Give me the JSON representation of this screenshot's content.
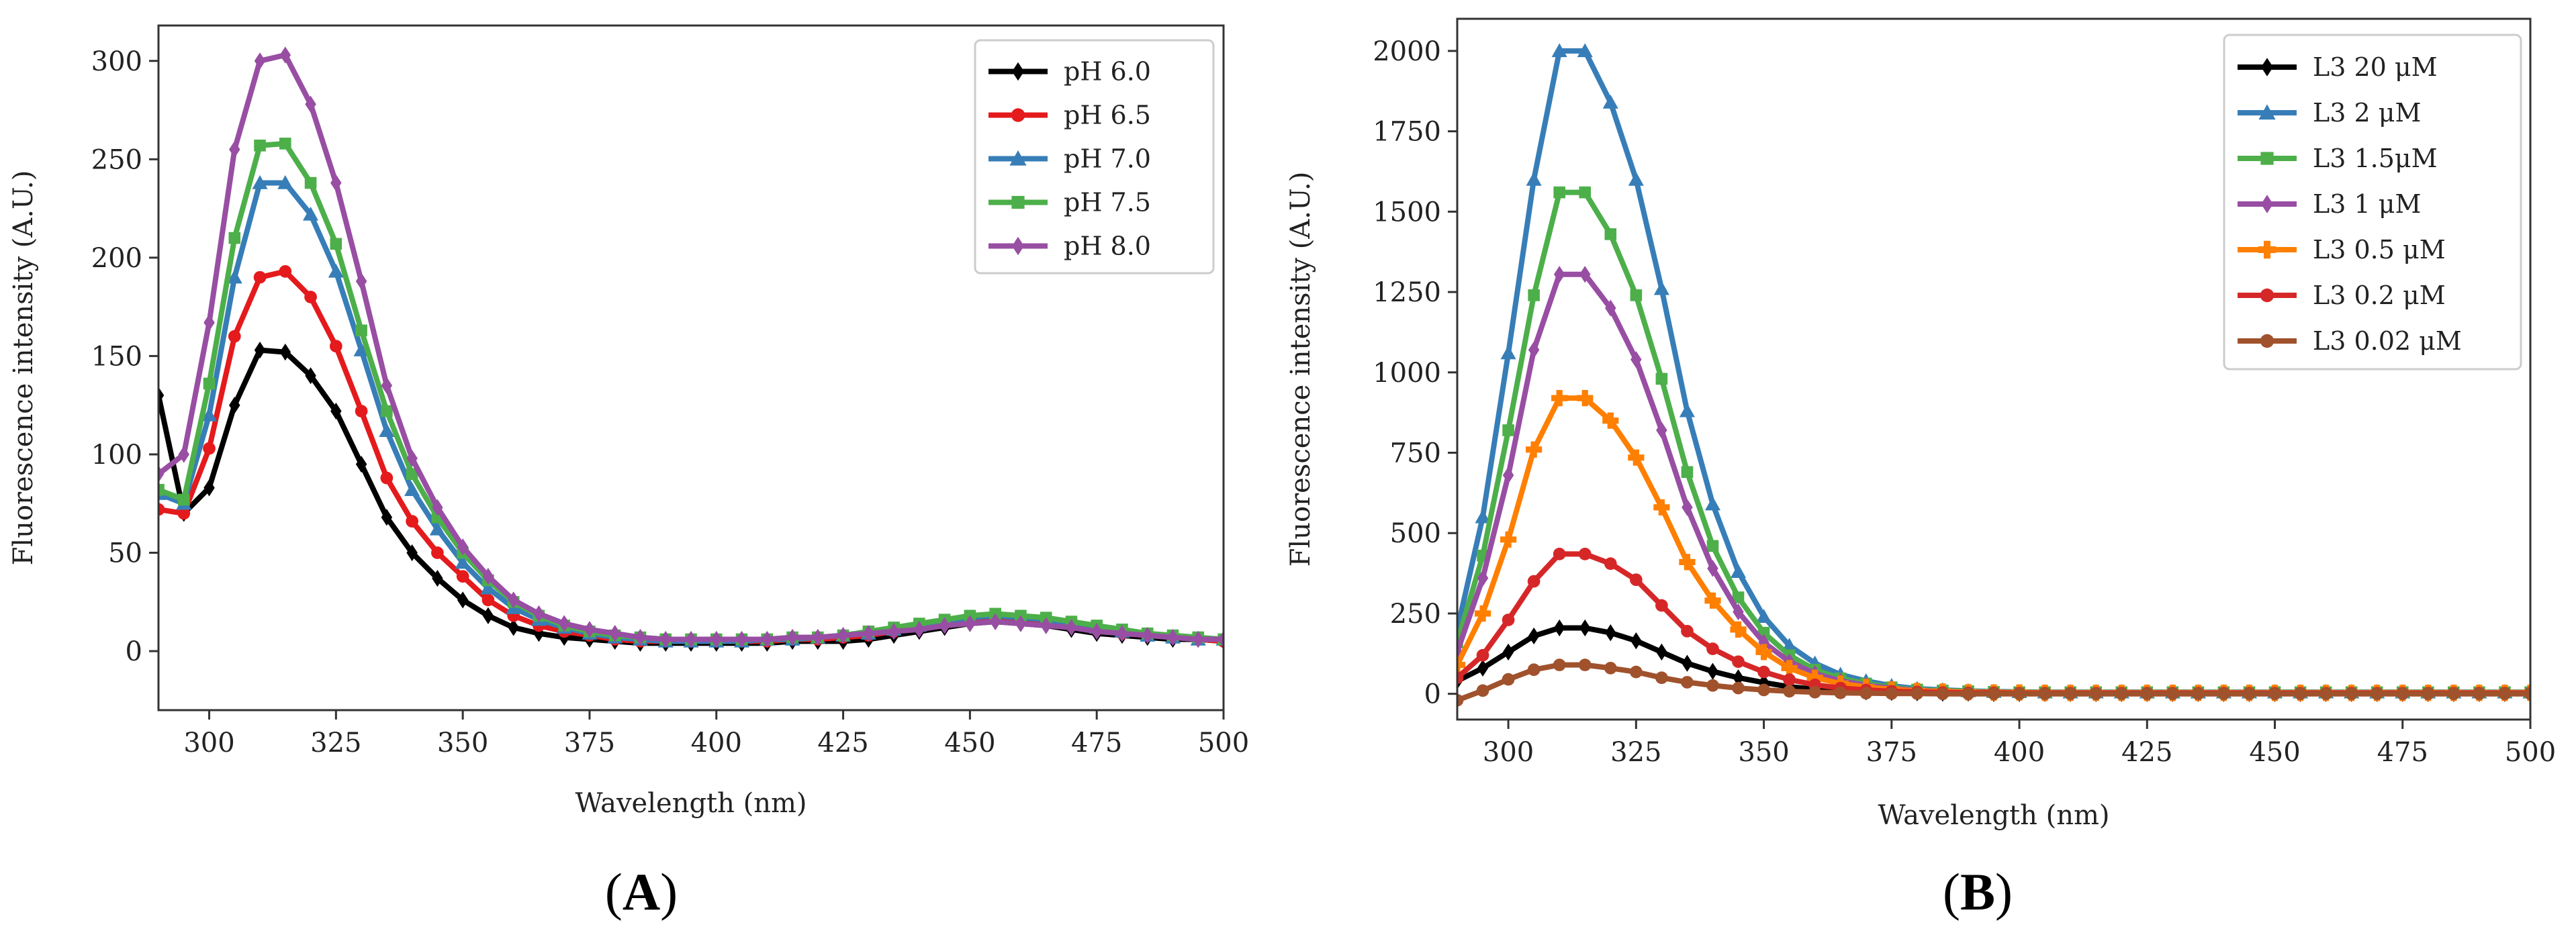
{
  "chart_data": [
    {
      "type": "line",
      "panel_label": "A",
      "title": "",
      "xlabel": "Wavelength (nm)",
      "ylabel": "Fluorescence intensity (A.U.)",
      "xlim": [
        290,
        500
      ],
      "ylim": [
        -30,
        318
      ],
      "xticks": [
        300,
        325,
        350,
        375,
        400,
        425,
        450,
        475,
        500
      ],
      "yticks": [
        0,
        50,
        100,
        150,
        200,
        250,
        300
      ],
      "grid": false,
      "legend_position": "top-right",
      "x": [
        290,
        295,
        300,
        305,
        310,
        315,
        320,
        325,
        330,
        335,
        340,
        345,
        350,
        355,
        360,
        365,
        370,
        375,
        380,
        385,
        390,
        395,
        400,
        405,
        410,
        415,
        420,
        425,
        430,
        435,
        440,
        445,
        450,
        455,
        460,
        465,
        470,
        475,
        480,
        485,
        490,
        495,
        500
      ],
      "series": [
        {
          "name": "pH 6.0",
          "color": "#000000",
          "marker": "diamond",
          "values": [
            130,
            70,
            83,
            125,
            153,
            152,
            140,
            122,
            95,
            68,
            50,
            37,
            26,
            18,
            12,
            9,
            7,
            6,
            5,
            4,
            4,
            4,
            4,
            4,
            4,
            5,
            5,
            5,
            6,
            8,
            10,
            12,
            14,
            15,
            14,
            13,
            11,
            9,
            8,
            7,
            6,
            6,
            5
          ]
        },
        {
          "name": "pH 6.5",
          "color": "#e41a1c",
          "marker": "circle",
          "values": [
            72,
            70,
            103,
            160,
            190,
            193,
            180,
            155,
            122,
            88,
            66,
            50,
            38,
            26,
            18,
            13,
            10,
            8,
            6,
            5,
            5,
            5,
            5,
            5,
            5,
            6,
            6,
            7,
            8,
            10,
            12,
            14,
            16,
            17,
            16,
            15,
            13,
            11,
            9,
            8,
            7,
            6,
            5
          ]
        },
        {
          "name": "pH 7.0",
          "color": "#377eb8",
          "marker": "triangle",
          "values": [
            80,
            75,
            120,
            190,
            238,
            238,
            222,
            193,
            153,
            112,
            82,
            62,
            45,
            32,
            22,
            16,
            12,
            9,
            7,
            6,
            5,
            5,
            5,
            5,
            6,
            6,
            7,
            8,
            9,
            11,
            13,
            15,
            17,
            18,
            17,
            16,
            14,
            12,
            10,
            8,
            7,
            6,
            6
          ]
        },
        {
          "name": "pH 7.5",
          "color": "#4daf4a",
          "marker": "square",
          "values": [
            82,
            77,
            136,
            210,
            257,
            258,
            238,
            207,
            163,
            122,
            90,
            68,
            50,
            36,
            25,
            18,
            13,
            10,
            8,
            7,
            6,
            6,
            6,
            6,
            6,
            7,
            7,
            8,
            10,
            12,
            14,
            16,
            18,
            19,
            18,
            17,
            15,
            13,
            11,
            9,
            8,
            7,
            6
          ]
        },
        {
          "name": "pH 8.0",
          "color": "#984ea3",
          "marker": "diamond",
          "values": [
            90,
            100,
            167,
            255,
            300,
            303,
            278,
            238,
            188,
            135,
            98,
            73,
            53,
            38,
            26,
            19,
            14,
            11,
            9,
            7,
            6,
            6,
            6,
            6,
            6,
            7,
            7,
            8,
            9,
            10,
            11,
            13,
            14,
            15,
            14,
            13,
            12,
            10,
            9,
            8,
            7,
            6,
            6
          ]
        }
      ]
    },
    {
      "type": "line",
      "panel_label": "B",
      "title": "",
      "xlabel": "Wavelength (nm)",
      "ylabel": "Fluorescence intensity (A.U.)",
      "xlim": [
        290,
        500
      ],
      "ylim": [
        -80,
        2100
      ],
      "xticks": [
        300,
        325,
        350,
        375,
        400,
        425,
        450,
        475,
        500
      ],
      "yticks": [
        0,
        250,
        500,
        750,
        1000,
        1250,
        1500,
        1750,
        2000
      ],
      "grid": false,
      "legend_position": "top-right",
      "x": [
        290,
        295,
        300,
        305,
        310,
        315,
        320,
        325,
        330,
        335,
        340,
        345,
        350,
        355,
        360,
        365,
        370,
        375,
        380,
        385,
        390,
        395,
        400,
        405,
        410,
        415,
        420,
        425,
        430,
        435,
        440,
        445,
        450,
        455,
        460,
        465,
        470,
        475,
        480,
        485,
        490,
        495,
        500
      ],
      "series": [
        {
          "name": "L3 20 μM",
          "color": "#000000",
          "marker": "diamond",
          "values": [
            40,
            80,
            130,
            180,
            205,
            205,
            190,
            165,
            130,
            95,
            70,
            50,
            35,
            22,
            14,
            9,
            6,
            4,
            3,
            2,
            2,
            1,
            1,
            1,
            1,
            1,
            1,
            1,
            1,
            1,
            1,
            1,
            1,
            1,
            1,
            1,
            1,
            1,
            1,
            1,
            1,
            1,
            1
          ]
        },
        {
          "name": "L3 2 μM",
          "color": "#377eb8",
          "marker": "triangle",
          "values": [
            200,
            550,
            1060,
            1600,
            2000,
            2000,
            1840,
            1600,
            1260,
            880,
            590,
            380,
            240,
            150,
            95,
            60,
            40,
            25,
            16,
            12,
            9,
            7,
            6,
            5,
            5,
            5,
            5,
            5,
            5,
            5,
            5,
            5,
            5,
            5,
            5,
            5,
            5,
            5,
            5,
            5,
            5,
            5,
            5
          ]
        },
        {
          "name": "L3 1.5μM",
          "color": "#4daf4a",
          "marker": "square",
          "values": [
            160,
            430,
            820,
            1240,
            1560,
            1560,
            1430,
            1240,
            980,
            690,
            460,
            300,
            190,
            120,
            75,
            48,
            32,
            20,
            13,
            10,
            8,
            6,
            5,
            5,
            5,
            5,
            5,
            5,
            5,
            5,
            5,
            5,
            5,
            5,
            5,
            5,
            5,
            5,
            5,
            5,
            5,
            5,
            5
          ]
        },
        {
          "name": "L3 1 μM",
          "color": "#984ea3",
          "marker": "diamond",
          "values": [
            130,
            360,
            680,
            1070,
            1305,
            1305,
            1200,
            1040,
            820,
            580,
            390,
            255,
            160,
            100,
            63,
            40,
            27,
            17,
            11,
            8,
            6,
            5,
            4,
            4,
            4,
            4,
            4,
            4,
            4,
            4,
            4,
            4,
            4,
            4,
            4,
            4,
            4,
            4,
            4,
            4,
            4,
            4,
            4
          ]
        },
        {
          "name": "L3 0.5 μM",
          "color": "#ff7f00",
          "marker": "plus",
          "values": [
            90,
            250,
            480,
            760,
            920,
            920,
            850,
            735,
            580,
            410,
            290,
            200,
            130,
            80,
            50,
            32,
            21,
            14,
            9,
            7,
            5,
            4,
            4,
            3,
            3,
            3,
            3,
            3,
            3,
            3,
            3,
            3,
            3,
            3,
            3,
            3,
            3,
            3,
            3,
            3,
            3,
            3,
            3
          ]
        },
        {
          "name": "L3 0.2 μM",
          "color": "#d62728",
          "marker": "circle",
          "values": [
            50,
            120,
            230,
            350,
            435,
            435,
            405,
            355,
            275,
            195,
            140,
            100,
            68,
            44,
            28,
            18,
            12,
            8,
            6,
            4,
            3,
            3,
            2,
            2,
            2,
            2,
            2,
            2,
            2,
            2,
            2,
            2,
            2,
            2,
            2,
            2,
            2,
            2,
            2,
            2,
            2,
            2,
            2
          ]
        },
        {
          "name": "L3 0.02 μM",
          "color": "#a0522d",
          "marker": "circle",
          "values": [
            -20,
            10,
            45,
            75,
            90,
            90,
            80,
            68,
            50,
            36,
            26,
            18,
            12,
            8,
            5,
            3,
            2,
            1,
            1,
            0,
            0,
            0,
            0,
            0,
            0,
            0,
            0,
            0,
            0,
            0,
            0,
            0,
            0,
            0,
            0,
            0,
            0,
            0,
            0,
            0,
            0,
            0,
            0
          ]
        }
      ]
    }
  ]
}
